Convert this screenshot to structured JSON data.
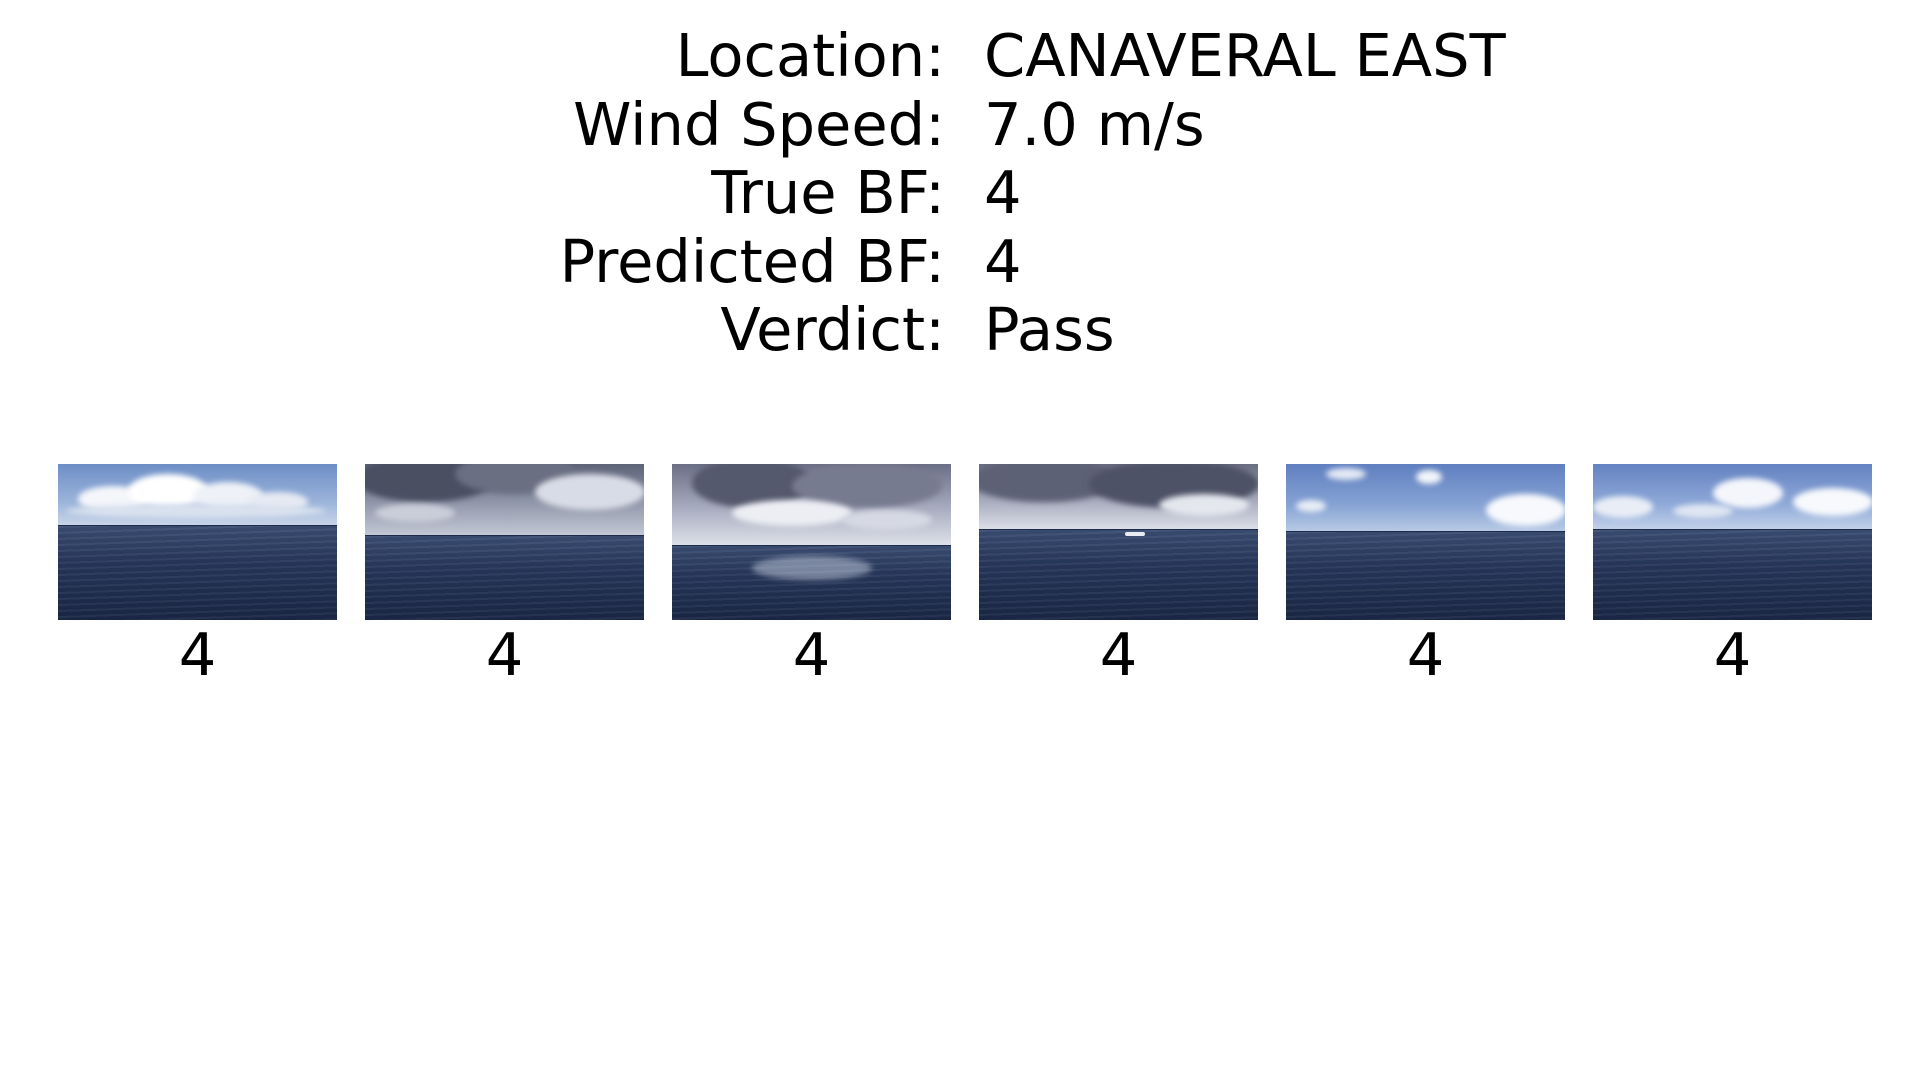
{
  "info": {
    "rows": [
      {
        "label": "Location:",
        "value": "CANAVERAL EAST"
      },
      {
        "label": "Wind Speed:",
        "value": "7.0 m/s"
      },
      {
        "label": "True BF:",
        "value": "4"
      },
      {
        "label": "Predicted BF:",
        "value": "4"
      },
      {
        "label": "Verdict:",
        "value": "Pass"
      }
    ]
  },
  "thumbnails": [
    {
      "label": "4",
      "scene": "sea-photo-fair-clouds"
    },
    {
      "label": "4",
      "scene": "sea-photo-rain-squall"
    },
    {
      "label": "4",
      "scene": "sea-photo-storm-clouds-glare"
    },
    {
      "label": "4",
      "scene": "sea-photo-dark-clouds-boat"
    },
    {
      "label": "4",
      "scene": "sea-photo-blue-sky-few-clouds"
    },
    {
      "label": "4",
      "scene": "sea-photo-blue-sky-scattered-clouds"
    }
  ],
  "colors": {
    "background": "#ffffff",
    "text": "#000000",
    "sea_dark": "#1a2745",
    "sky_blue": "#6f8fc4"
  }
}
